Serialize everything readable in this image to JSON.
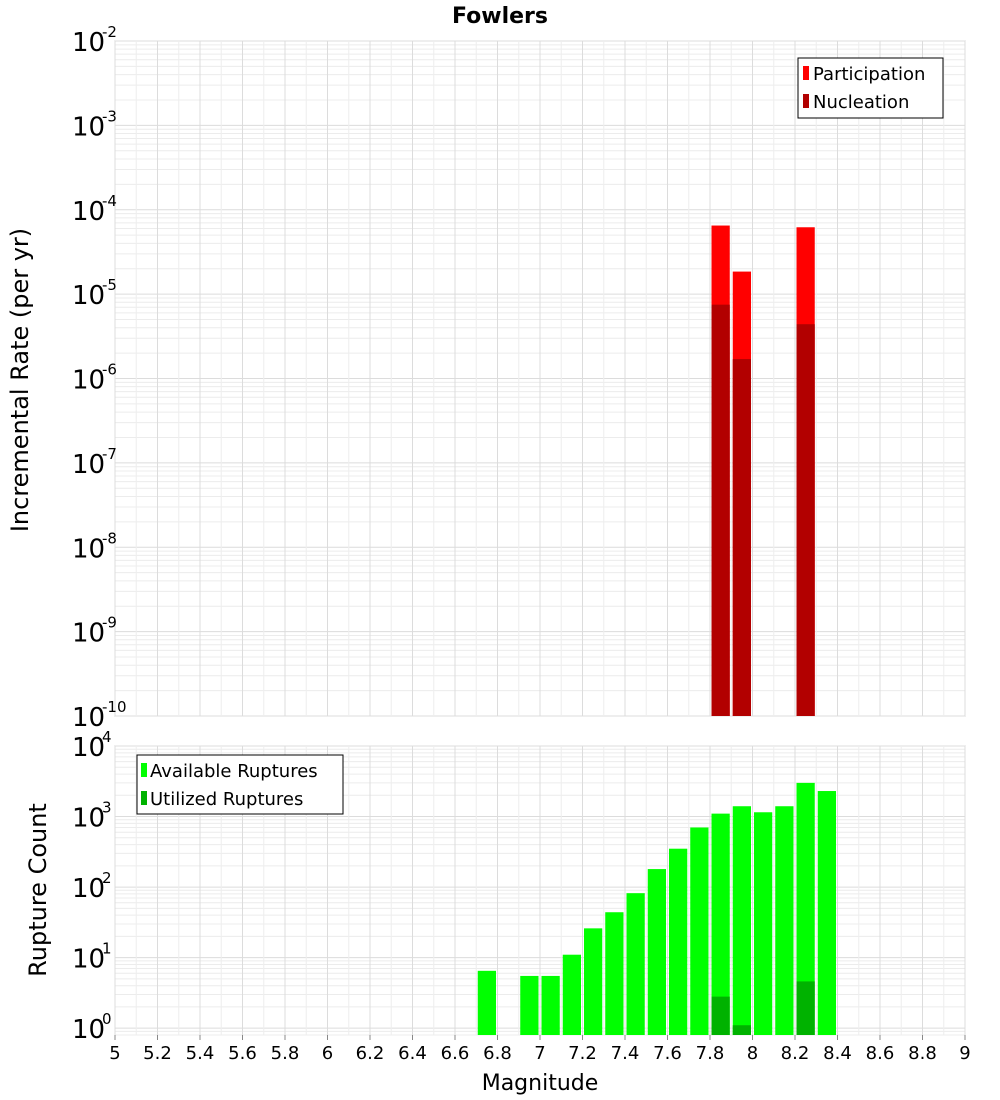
{
  "chart_data": [
    {
      "type": "bar",
      "title": "Fowlers",
      "ylabel": "Incremental Rate (per yr)",
      "xlabel": "",
      "yscale": "log",
      "ylim": [
        1e-10,
        0.01
      ],
      "xlim": [
        5,
        9
      ],
      "grid": true,
      "legend_position": "top-right",
      "bar_width": 0.1,
      "ytick_exponents": [
        -10,
        -9,
        -8,
        -7,
        -6,
        -5,
        -4,
        -3,
        -2
      ],
      "series": [
        {
          "name": "Participation",
          "color": "#ff0000",
          "x": [
            7.85,
            7.95,
            8.25
          ],
          "values": [
            6.5e-05,
            1.85e-05,
            6.2e-05
          ]
        },
        {
          "name": "Nucleation",
          "color": "#b20000",
          "x": [
            7.85,
            7.95,
            8.25
          ],
          "values": [
            7.5e-06,
            1.7e-06,
            4.4e-06
          ]
        }
      ]
    },
    {
      "type": "bar",
      "title": "",
      "ylabel": "Rupture Count",
      "xlabel": "Magnitude",
      "yscale": "log",
      "ylim": [
        0.8,
        10000
      ],
      "xlim": [
        5,
        9
      ],
      "grid": true,
      "legend_position": "top-left",
      "bar_width": 0.1,
      "ytick_exponents": [
        0,
        1,
        2,
        3,
        4
      ],
      "xticks": [
        "5",
        "5.2",
        "5.4",
        "5.6",
        "5.8",
        "6",
        "6.2",
        "6.4",
        "6.6",
        "6.8",
        "7",
        "7.2",
        "7.4",
        "7.6",
        "7.8",
        "8",
        "8.2",
        "8.4",
        "8.6",
        "8.8",
        "9"
      ],
      "series": [
        {
          "name": "Available Ruptures",
          "color": "#00ff00",
          "x": [
            6.75,
            6.95,
            7.05,
            7.15,
            7.25,
            7.35,
            7.45,
            7.55,
            7.65,
            7.75,
            7.85,
            7.95,
            8.05,
            8.15,
            8.25,
            8.35
          ],
          "values": [
            6.5,
            5.5,
            5.5,
            11,
            26,
            44,
            82,
            180,
            350,
            700,
            1100,
            1400,
            1150,
            1400,
            3000,
            2300
          ]
        },
        {
          "name": "Utilized Ruptures",
          "color": "#00b200",
          "x": [
            7.85,
            7.95,
            8.25
          ],
          "values": [
            2.8,
            1.1,
            4.6
          ]
        }
      ]
    }
  ]
}
